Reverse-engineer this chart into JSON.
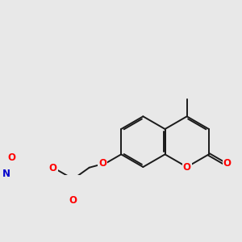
{
  "background_color": "#e8e8e8",
  "bond_color": "#1a1a1a",
  "bond_width": 1.4,
  "atom_colors": {
    "O": "#ff0000",
    "N": "#0000cc",
    "C": "#1a1a1a"
  },
  "font_size": 8.5
}
